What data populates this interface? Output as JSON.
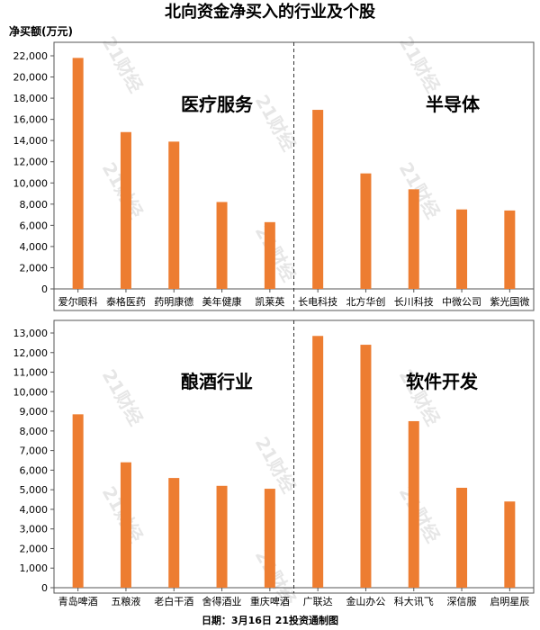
{
  "title": "北向资金净买入的行业及个股",
  "unit_label": "净买额(万元)",
  "footer": "日期：3月16日 21投资通制图",
  "watermark": "21财经",
  "colors": {
    "bar": "#ED7D31",
    "axis": "#555555",
    "divider": "#333333"
  },
  "chart_data": [
    {
      "type": "bar",
      "title": "",
      "xlabel": "",
      "ylabel": "净买额(万元)",
      "ylim": [
        0,
        22000
      ],
      "yticks": [
        0,
        2000,
        4000,
        6000,
        8000,
        10000,
        12000,
        14000,
        16000,
        18000,
        20000,
        22000
      ],
      "ytick_labels": [
        "0",
        "2,000",
        "4,000",
        "6,000",
        "8,000",
        "10,000",
        "12,000",
        "14,000",
        "16,000",
        "18,000",
        "20,000",
        "22,000"
      ],
      "grid": false,
      "groups": [
        {
          "label": "医疗服务",
          "categories": [
            "爱尔眼科",
            "泰格医药",
            "药明康德",
            "美年健康",
            "凯莱英"
          ],
          "values": [
            21800,
            14800,
            13900,
            8200,
            6300
          ]
        },
        {
          "label": "半导体",
          "categories": [
            "长电科技",
            "北方华创",
            "长川科技",
            "中微公司",
            "紫光国微"
          ],
          "values": [
            16900,
            10900,
            9400,
            7500,
            7400
          ]
        }
      ]
    },
    {
      "type": "bar",
      "title": "",
      "xlabel": "",
      "ylabel": "",
      "ylim": [
        0,
        13000
      ],
      "yticks": [
        0,
        1000,
        2000,
        3000,
        4000,
        5000,
        6000,
        7000,
        8000,
        9000,
        10000,
        11000,
        12000,
        13000
      ],
      "ytick_labels": [
        "0",
        "1,000",
        "2,000",
        "3,000",
        "4,000",
        "5,000",
        "6,000",
        "7,000",
        "8,000",
        "9,000",
        "10,000",
        "11,000",
        "12,000",
        "13,000"
      ],
      "grid": false,
      "groups": [
        {
          "label": "酿酒行业",
          "categories": [
            "青岛啤酒",
            "五粮液",
            "老白干酒",
            "舍得酒业",
            "重庆啤酒"
          ],
          "values": [
            8850,
            6400,
            5600,
            5200,
            5050
          ]
        },
        {
          "label": "软件开发",
          "categories": [
            "广联达",
            "金山办公",
            "科大讯飞",
            "深信服",
            "启明星辰"
          ],
          "values": [
            12850,
            12400,
            8500,
            5100,
            4400
          ]
        }
      ]
    }
  ]
}
